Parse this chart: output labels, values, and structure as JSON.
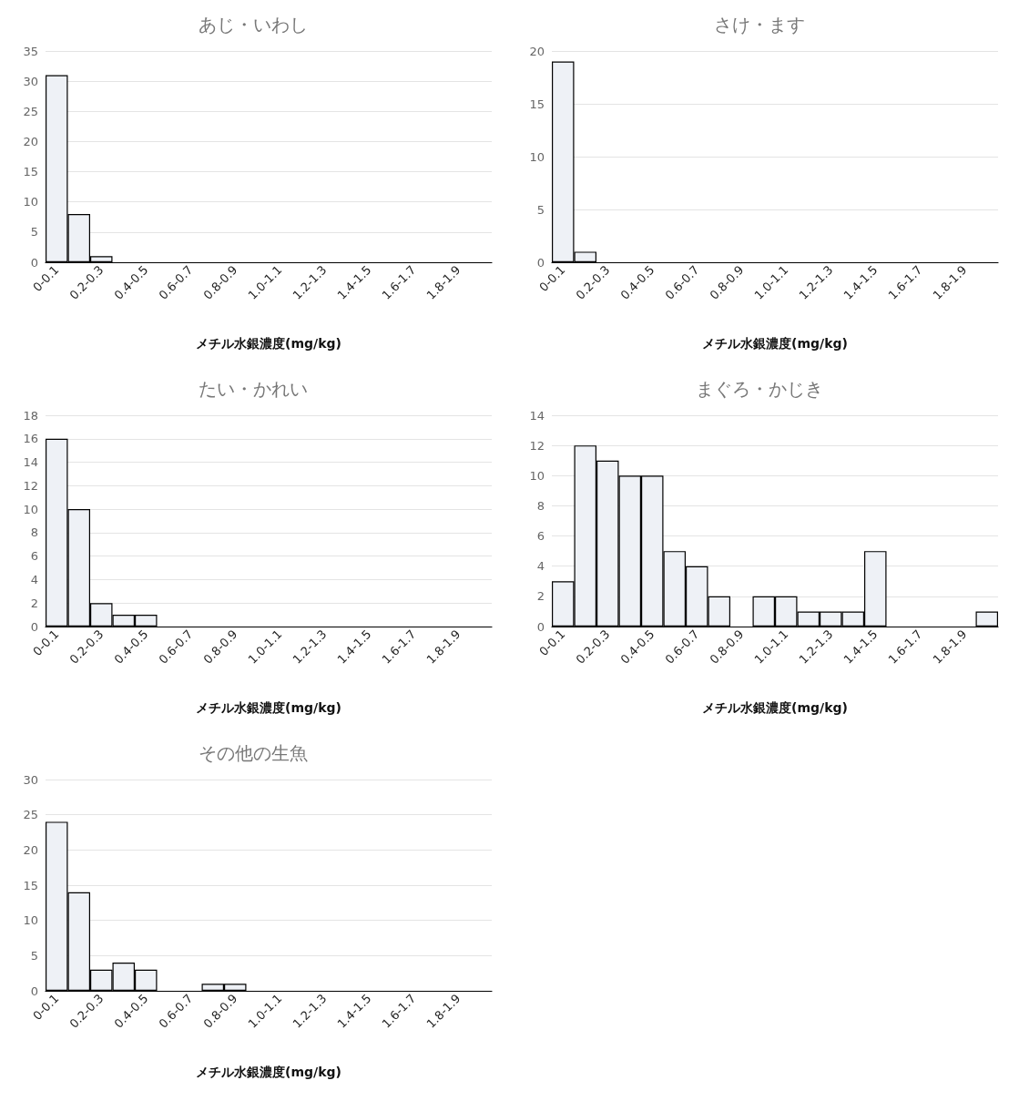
{
  "chart_data": [
    {
      "type": "bar",
      "title": "あじ・いわし",
      "xlabel": "メチル水銀濃度(mg/kg)",
      "categories": [
        "0-0.1",
        null,
        "0.2-0.3",
        null,
        "0.4-0.5",
        null,
        "0.6-0.7",
        null,
        "0.8-0.9",
        null,
        "1.0-1.1",
        null,
        "1.2-1.3",
        null,
        "1.4-1.5",
        null,
        "1.6-1.7",
        null,
        "1.8-1.9",
        null
      ],
      "values": [
        31,
        8,
        1,
        0,
        0,
        0,
        0,
        0,
        0,
        0,
        0,
        0,
        0,
        0,
        0,
        0,
        0,
        0,
        0,
        0
      ],
      "color": "#eef1f6",
      "ylim": [
        0,
        35
      ],
      "yticks": [
        0,
        5,
        10,
        15,
        20,
        25,
        30,
        35
      ],
      "grid": "y"
    },
    {
      "type": "bar",
      "title": "さけ・ます",
      "xlabel": "メチル水銀濃度(mg/kg)",
      "categories": [
        "0-0.1",
        null,
        "0.2-0.3",
        null,
        "0.4-0.5",
        null,
        "0.6-0.7",
        null,
        "0.8-0.9",
        null,
        "1.0-1.1",
        null,
        "1.2-1.3",
        null,
        "1.4-1.5",
        null,
        "1.6-1.7",
        null,
        "1.8-1.9",
        null
      ],
      "values": [
        19,
        1,
        0,
        0,
        0,
        0,
        0,
        0,
        0,
        0,
        0,
        0,
        0,
        0,
        0,
        0,
        0,
        0,
        0,
        0
      ],
      "color": "#eef1f6",
      "ylim": [
        0,
        20
      ],
      "yticks": [
        0,
        5,
        10,
        15,
        20
      ],
      "grid": "y"
    },
    {
      "type": "bar",
      "title": "たい・かれい",
      "xlabel": "メチル水銀濃度(mg/kg)",
      "categories": [
        "0-0.1",
        null,
        "0.2-0.3",
        null,
        "0.4-0.5",
        null,
        "0.6-0.7",
        null,
        "0.8-0.9",
        null,
        "1.0-1.1",
        null,
        "1.2-1.3",
        null,
        "1.4-1.5",
        null,
        "1.6-1.7",
        null,
        "1.8-1.9",
        null
      ],
      "values": [
        16,
        10,
        2,
        1,
        1,
        0,
        0,
        0,
        0,
        0,
        0,
        0,
        0,
        0,
        0,
        0,
        0,
        0,
        0,
        0
      ],
      "color": "#eef1f6",
      "ylim": [
        0,
        18
      ],
      "yticks": [
        0,
        2,
        4,
        6,
        8,
        10,
        12,
        14,
        16,
        18
      ],
      "grid": "y"
    },
    {
      "type": "bar",
      "title": "まぐろ・かじき",
      "xlabel": "メチル水銀濃度(mg/kg)",
      "categories": [
        "0-0.1",
        null,
        "0.2-0.3",
        null,
        "0.4-0.5",
        null,
        "0.6-0.7",
        null,
        "0.8-0.9",
        null,
        "1.0-1.1",
        null,
        "1.2-1.3",
        null,
        "1.4-1.5",
        null,
        "1.6-1.7",
        null,
        "1.8-1.9",
        null
      ],
      "values": [
        3,
        12,
        11,
        10,
        10,
        5,
        4,
        2,
        0,
        2,
        2,
        1,
        1,
        1,
        5,
        0,
        0,
        0,
        0,
        1
      ],
      "color": "#eef1f6",
      "ylim": [
        0,
        14
      ],
      "yticks": [
        0,
        2,
        4,
        6,
        8,
        10,
        12,
        14
      ],
      "grid": "y"
    },
    {
      "type": "bar",
      "title": "その他の生魚",
      "xlabel": "メチル水銀濃度(mg/kg)",
      "categories": [
        "0-0.1",
        null,
        "0.2-0.3",
        null,
        "0.4-0.5",
        null,
        "0.6-0.7",
        null,
        "0.8-0.9",
        null,
        "1.0-1.1",
        null,
        "1.2-1.3",
        null,
        "1.4-1.5",
        null,
        "1.6-1.7",
        null,
        "1.8-1.9",
        null
      ],
      "values": [
        24,
        14,
        3,
        4,
        3,
        0,
        0,
        1,
        1,
        0,
        0,
        0,
        0,
        0,
        0,
        0,
        0,
        0,
        0,
        0
      ],
      "color": "#eef1f6",
      "ylim": [
        0,
        30
      ],
      "yticks": [
        0,
        5,
        10,
        15,
        20,
        25,
        30
      ],
      "grid": "y"
    }
  ]
}
